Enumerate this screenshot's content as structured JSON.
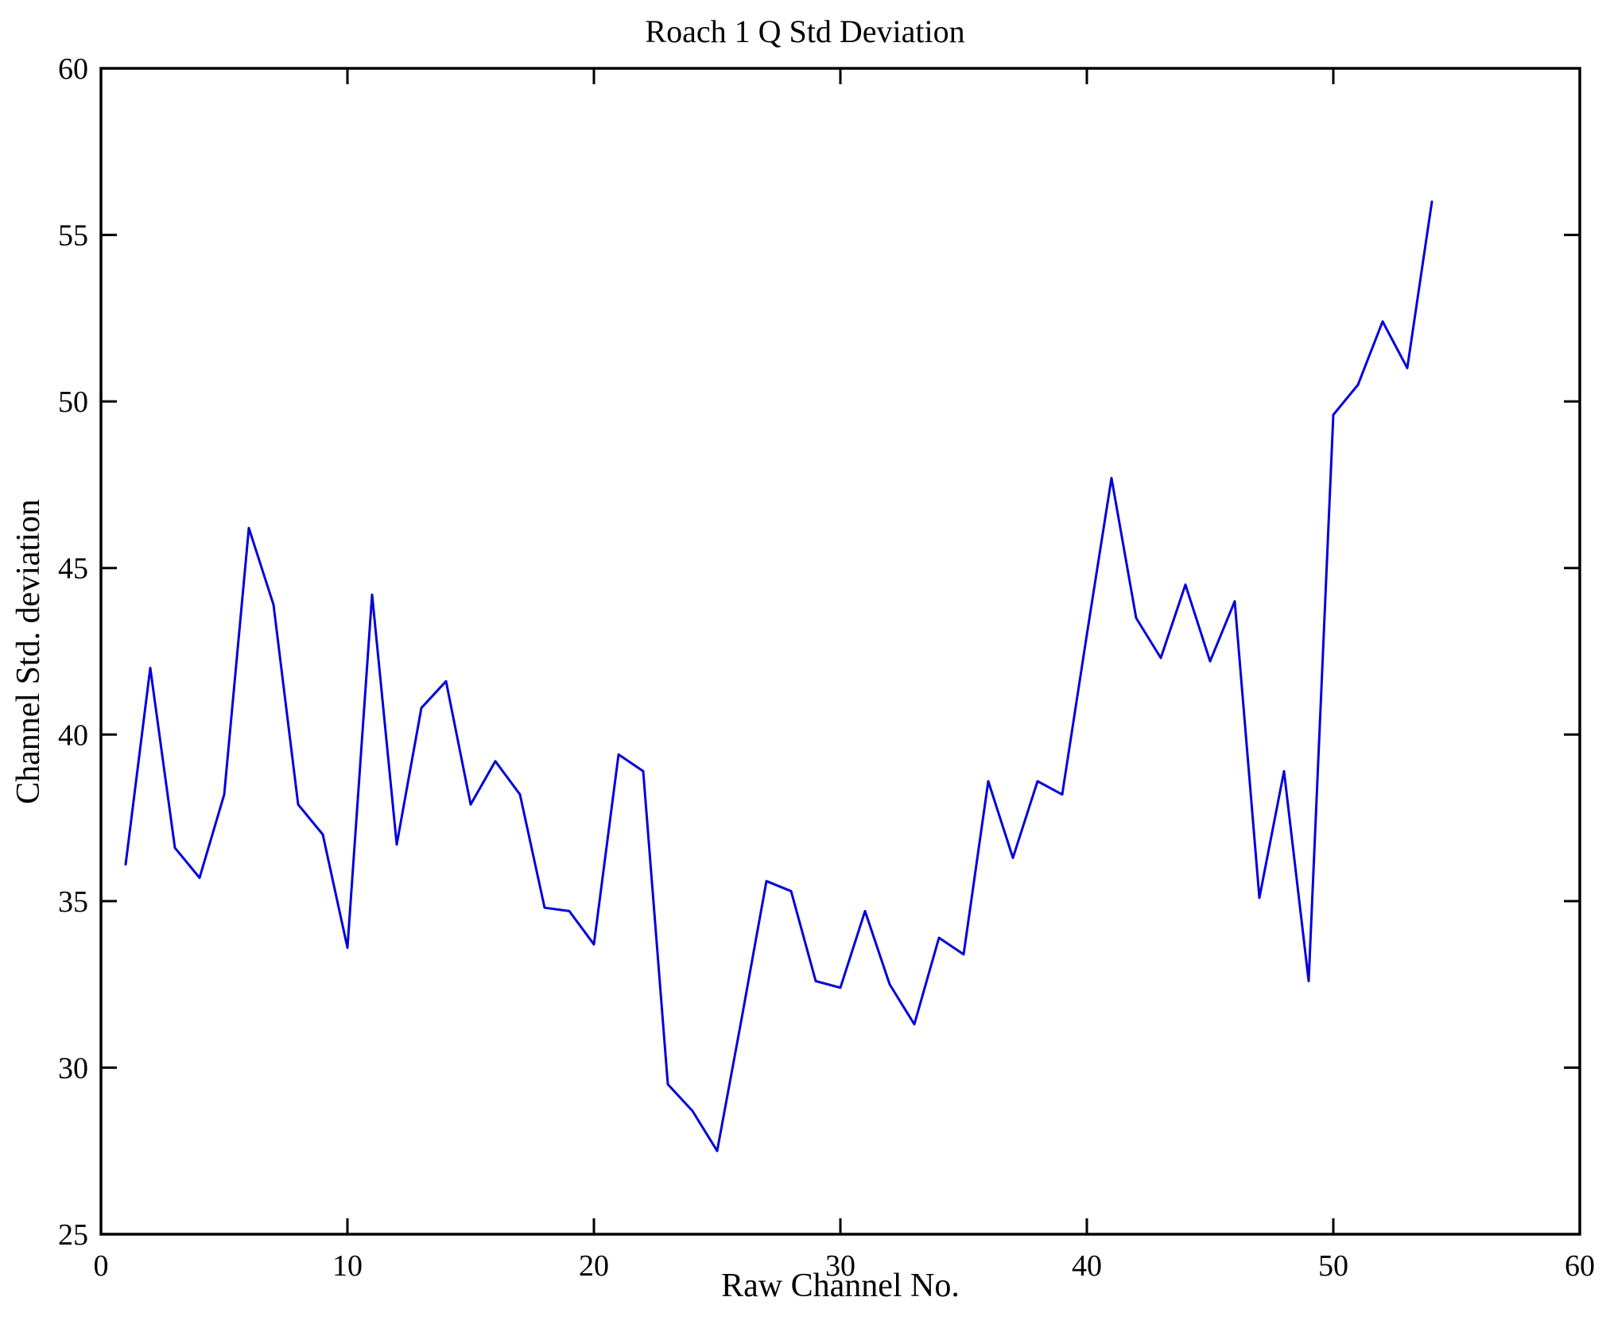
{
  "figure": {
    "background_color": "#ffffff",
    "text_color": "#000000",
    "title": "Roach 1 Q Std Deviation",
    "xlabel": "Raw Channel No.",
    "ylabel": "Channel Std. deviation"
  },
  "chart_data": {
    "type": "line",
    "title": "Roach 1 Q Std Deviation",
    "xlabel": "Raw Channel No.",
    "ylabel": "Channel Std. deviation",
    "xlim": [
      0,
      60
    ],
    "ylim": [
      25,
      60
    ],
    "x_ticks": [
      0,
      10,
      20,
      30,
      40,
      50,
      60
    ],
    "y_ticks": [
      25,
      30,
      35,
      40,
      45,
      50,
      55,
      60
    ],
    "grid": false,
    "legend": null,
    "line_color": "#0000dd",
    "axis_color": "#000000",
    "series_name": "Channel Std. deviation vs Raw Channel No.",
    "x": [
      1,
      2,
      3,
      4,
      5,
      6,
      7,
      8,
      9,
      10,
      11,
      12,
      13,
      14,
      15,
      16,
      17,
      18,
      19,
      20,
      21,
      22,
      23,
      24,
      25,
      26,
      27,
      28,
      29,
      30,
      31,
      32,
      33,
      34,
      35,
      36,
      37,
      38,
      39,
      40,
      41,
      42,
      43,
      44,
      45,
      46,
      47,
      48,
      49,
      50,
      51,
      52,
      53,
      54
    ],
    "y": [
      36.1,
      42.0,
      36.6,
      35.7,
      38.2,
      46.2,
      43.9,
      37.9,
      37.0,
      33.6,
      44.2,
      36.7,
      40.8,
      41.6,
      37.9,
      39.2,
      38.2,
      34.8,
      34.7,
      33.7,
      39.4,
      38.9,
      29.5,
      28.7,
      27.5,
      31.5,
      35.6,
      35.3,
      32.6,
      32.4,
      34.7,
      32.5,
      31.3,
      33.9,
      33.4,
      38.6,
      36.3,
      38.6,
      38.2,
      43.0,
      47.7,
      43.5,
      42.3,
      44.5,
      42.2,
      44.0,
      35.1,
      38.9,
      32.6,
      49.6,
      50.5,
      52.4,
      51.0,
      56.0
    ]
  }
}
